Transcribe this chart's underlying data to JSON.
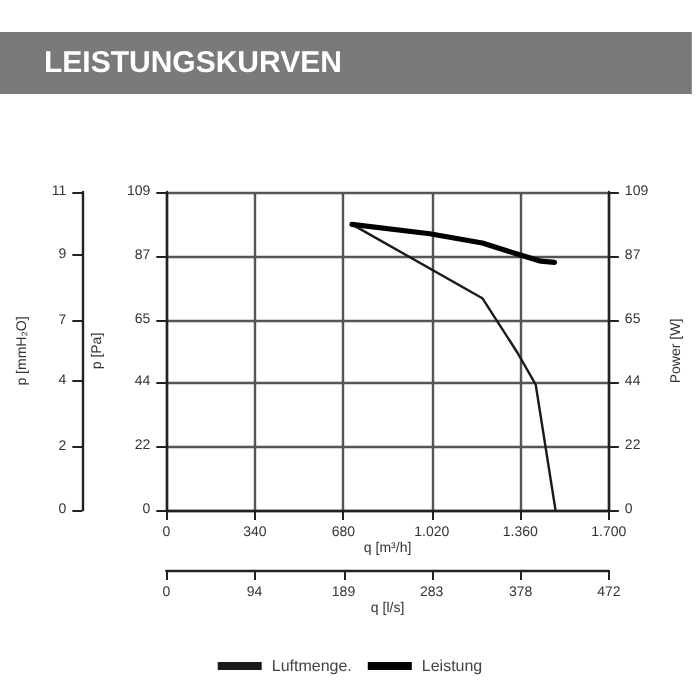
{
  "chart_data": {
    "type": "line",
    "title": "LEISTUNGSKURVEN",
    "xlabel": "q [m³/h]",
    "ylabel": "p [Pa]",
    "y2label": "Power [W]",
    "y3label": "p [mmH₂O]",
    "x2label": "q [l/s]",
    "xlim": [
      0,
      1700
    ],
    "xticks": [
      0,
      340,
      680,
      {
        "value": 1020,
        "label": "1.020"
      },
      {
        "value": 1360,
        "label": "1.360"
      },
      {
        "value": 1700,
        "label": "1.700"
      }
    ],
    "x2lim": [
      0,
      472
    ],
    "x2ticks": [
      0,
      94,
      189,
      283,
      378,
      472
    ],
    "ylim": [
      0,
      109
    ],
    "yticks": [
      0,
      22,
      44,
      65,
      87,
      109
    ],
    "y2lim": [
      0,
      109
    ],
    "y2ticks": [
      0,
      22,
      44,
      65,
      87,
      109
    ],
    "y3lim": [
      0,
      11.1
    ],
    "y3ticks": [
      0,
      {
        "value": 2.2,
        "label": "2"
      },
      {
        "value": 4.5,
        "label": "4"
      },
      {
        "value": 6.6,
        "label": "7"
      },
      {
        "value": 8.9,
        "label": "9"
      },
      {
        "value": 11.1,
        "label": "11"
      }
    ],
    "series": [
      {
        "name": "Luftmenge.",
        "color": "#1a1a1a",
        "x": [
          713,
          1214,
          1349,
          1419,
          1495
        ],
        "values": [
          97.9,
          72.6,
          53.9,
          43,
          0
        ]
      },
      {
        "name": "Leistung",
        "color": "#000000",
        "axis": "y2",
        "x": [
          713,
          1012,
          1214,
          1360,
          1439,
          1491
        ],
        "values": [
          97.9,
          94.7,
          91.5,
          87.4,
          85.3,
          84.9
        ]
      }
    ],
    "grid": true,
    "legend": "bottom",
    "marker": "none",
    "line_style": "solid"
  }
}
